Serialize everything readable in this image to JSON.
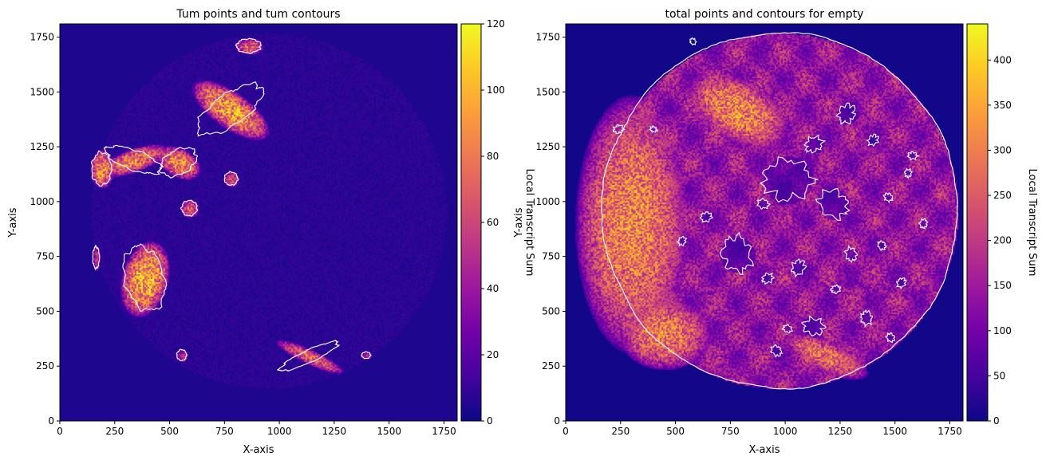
{
  "colormap": {
    "name": "plasma",
    "stops": [
      "#0d0887",
      "#46039f",
      "#7201a8",
      "#9c179e",
      "#bd3786",
      "#d8576b",
      "#ed7953",
      "#fb9f3a",
      "#fdca26",
      "#f0f921"
    ]
  },
  "contour_color": "#ffffff",
  "chart_data": [
    {
      "type": "heatmap",
      "title": "Tum points and tum contours",
      "xlabel": "X-axis",
      "ylabel": "Y-axis",
      "xlim": [
        0,
        1810
      ],
      "ylim": [
        0,
        1810
      ],
      "xticks": [
        0,
        250,
        500,
        750,
        1000,
        1250,
        1500,
        1750
      ],
      "yticks": [
        0,
        250,
        500,
        750,
        1000,
        1250,
        1500,
        1750
      ],
      "colorbar": {
        "label": "Local Transcript Sum",
        "range": [
          0,
          120
        ],
        "ticks": [
          0,
          20,
          40,
          60,
          80,
          100,
          120
        ]
      },
      "background_level": 4,
      "tissue_disk": {
        "cx": 950,
        "cy": 960,
        "r": 810,
        "level": 7
      },
      "blobs": [
        {
          "name": "tum-region-top",
          "cx": 860,
          "cy": 1710,
          "rx": 55,
          "ry": 32,
          "angle": 0,
          "level": 70
        },
        {
          "name": "tum-region-upper",
          "cx": 775,
          "cy": 1420,
          "rx": 175,
          "ry": 70,
          "angle": 35,
          "level": 90
        },
        {
          "name": "tum-region-left-arm",
          "cx": 190,
          "cy": 1150,
          "rx": 45,
          "ry": 75,
          "angle": 0,
          "level": 85
        },
        {
          "name": "tum-region-bridge",
          "cx": 335,
          "cy": 1190,
          "rx": 135,
          "ry": 45,
          "angle": -20,
          "level": 80
        },
        {
          "name": "tum-region-mid",
          "cx": 540,
          "cy": 1180,
          "rx": 90,
          "ry": 55,
          "angle": 30,
          "level": 85
        },
        {
          "name": "tum-region-small-1",
          "cx": 780,
          "cy": 1105,
          "rx": 30,
          "ry": 30,
          "angle": 0,
          "level": 60
        },
        {
          "name": "tum-region-small-2",
          "cx": 590,
          "cy": 970,
          "rx": 35,
          "ry": 35,
          "angle": 0,
          "level": 70
        },
        {
          "name": "tum-region-left-oval",
          "cx": 385,
          "cy": 650,
          "rx": 90,
          "ry": 150,
          "angle": 15,
          "level": 95
        },
        {
          "name": "tum-region-left-edge",
          "cx": 165,
          "cy": 745,
          "rx": 15,
          "ry": 50,
          "angle": 0,
          "level": 50
        },
        {
          "name": "tum-region-small-3",
          "cx": 555,
          "cy": 300,
          "rx": 22,
          "ry": 25,
          "angle": 0,
          "level": 45
        },
        {
          "name": "tum-region-lower-right",
          "cx": 1135,
          "cy": 295,
          "rx": 145,
          "ry": 28,
          "angle": 25,
          "level": 70
        },
        {
          "name": "tum-region-far-right",
          "cx": 1395,
          "cy": 300,
          "rx": 20,
          "ry": 15,
          "angle": 0,
          "level": 45
        }
      ]
    },
    {
      "type": "heatmap",
      "title": "total points and contours for empty",
      "xlabel": "X-axis",
      "ylabel": "Y-axis",
      "xlim": [
        0,
        1810
      ],
      "ylim": [
        0,
        1810
      ],
      "xticks": [
        0,
        250,
        500,
        750,
        1000,
        1250,
        1500,
        1750
      ],
      "yticks": [
        0,
        250,
        500,
        750,
        1000,
        1250,
        1500,
        1750
      ],
      "colorbar": {
        "label": "Local Transcript Sum",
        "range": [
          0,
          440
        ],
        "ticks": [
          0,
          50,
          100,
          150,
          200,
          250,
          300,
          350,
          400
        ]
      },
      "background_level": 5,
      "tissue_disk": {
        "cx": 975,
        "cy": 960,
        "r": 810,
        "level": 160
      },
      "blobs": [
        {
          "name": "dense-region-left",
          "cx": 300,
          "cy": 900,
          "rx": 220,
          "ry": 500,
          "angle": 0,
          "level": 300
        },
        {
          "name": "dense-region-top",
          "cx": 780,
          "cy": 1420,
          "rx": 220,
          "ry": 120,
          "angle": 30,
          "level": 310
        },
        {
          "name": "dense-region-lower-left",
          "cx": 450,
          "cy": 400,
          "rx": 180,
          "ry": 140,
          "angle": 0,
          "level": 290
        },
        {
          "name": "dense-region-bottom",
          "cx": 1180,
          "cy": 300,
          "rx": 180,
          "ry": 60,
          "angle": 25,
          "level": 280
        }
      ],
      "empty_outline": {
        "cx": 975,
        "cy": 960,
        "r": 810
      },
      "empty_patches": [
        {
          "cx": 1010,
          "cy": 1100,
          "r": 110
        },
        {
          "cx": 1220,
          "cy": 990,
          "r": 70
        },
        {
          "cx": 780,
          "cy": 760,
          "r": 80
        },
        {
          "cx": 1280,
          "cy": 1400,
          "r": 45
        },
        {
          "cx": 1130,
          "cy": 1260,
          "r": 40
        },
        {
          "cx": 1580,
          "cy": 1210,
          "r": 20
        },
        {
          "cx": 1470,
          "cy": 1020,
          "r": 20
        },
        {
          "cx": 1300,
          "cy": 760,
          "r": 30
        },
        {
          "cx": 1060,
          "cy": 700,
          "r": 35
        },
        {
          "cx": 920,
          "cy": 650,
          "r": 25
        },
        {
          "cx": 1130,
          "cy": 430,
          "r": 45
        },
        {
          "cx": 960,
          "cy": 320,
          "r": 25
        },
        {
          "cx": 1370,
          "cy": 470,
          "r": 30
        },
        {
          "cx": 530,
          "cy": 820,
          "r": 20
        },
        {
          "cx": 640,
          "cy": 930,
          "r": 25
        },
        {
          "cx": 900,
          "cy": 990,
          "r": 25
        },
        {
          "cx": 1440,
          "cy": 800,
          "r": 20
        },
        {
          "cx": 1630,
          "cy": 900,
          "r": 20
        },
        {
          "cx": 1530,
          "cy": 630,
          "r": 22
        },
        {
          "cx": 1230,
          "cy": 600,
          "r": 20
        },
        {
          "cx": 1010,
          "cy": 420,
          "r": 20
        },
        {
          "cx": 1480,
          "cy": 380,
          "r": 20
        },
        {
          "cx": 1560,
          "cy": 1130,
          "r": 18
        },
        {
          "cx": 1400,
          "cy": 1280,
          "r": 25
        },
        {
          "cx": 240,
          "cy": 1330,
          "r": 22
        },
        {
          "cx": 400,
          "cy": 1330,
          "r": 15
        },
        {
          "cx": 580,
          "cy": 1730,
          "r": 15
        }
      ]
    }
  ]
}
